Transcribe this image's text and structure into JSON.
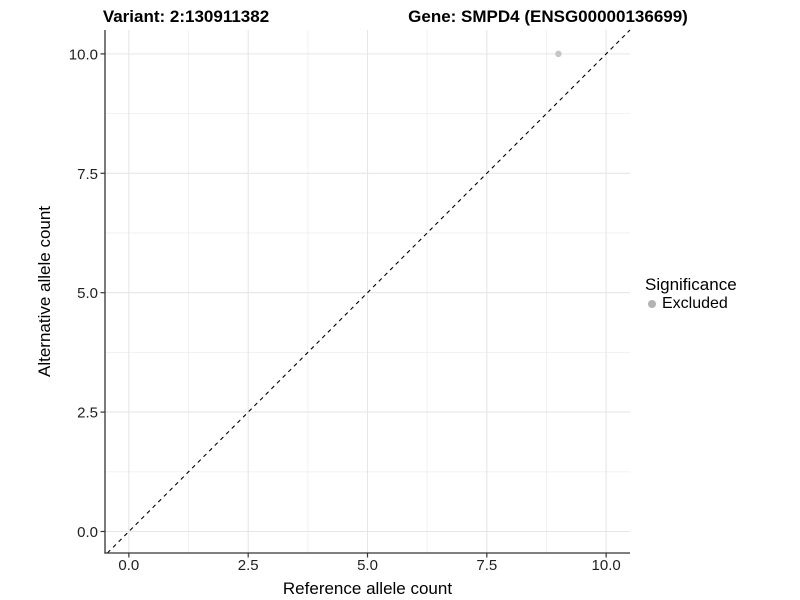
{
  "chart_data": {
    "type": "scatter",
    "titles": {
      "left": "Variant: 2:130911382",
      "right": "Gene: SMPD4 (ENSG00000136699)"
    },
    "xlabel": "Reference allele count",
    "ylabel": "Alternative allele count",
    "xlim": [
      -0.5,
      10.5
    ],
    "ylim": [
      -0.45,
      10.5
    ],
    "xticks": {
      "values": [
        0,
        2.5,
        5,
        7.5,
        10
      ],
      "labels": [
        "0.0",
        "2.5",
        "5.0",
        "7.5",
        "10.0"
      ]
    },
    "yticks": {
      "values": [
        0,
        2.5,
        5,
        7.5,
        10
      ],
      "labels": [
        "0.0",
        "2.5",
        "5.0",
        "7.5",
        "10.0"
      ]
    },
    "minor_gridlines": {
      "x": [
        1.25,
        3.75,
        6.25,
        8.75
      ],
      "y": [
        1.25,
        3.75,
        6.25,
        8.75
      ]
    },
    "grid": "on",
    "points": [
      {
        "x": 9,
        "y": 10,
        "series": "Excluded"
      }
    ],
    "reference_line": {
      "slope": 1,
      "intercept": 0,
      "style": "dashed",
      "color": "#000000"
    },
    "legend": {
      "title": "Significance",
      "position": "right",
      "items": [
        {
          "label": "Excluded",
          "color": "#b3b3b3"
        }
      ]
    },
    "colors": {
      "point_excluded": "#c5c5c5",
      "grid_major": "#e6e6e6",
      "grid_minor": "#f0f0f0",
      "axis_line": "#333333",
      "tick_text": "#1f1f1f",
      "title_text": "#000000"
    }
  }
}
